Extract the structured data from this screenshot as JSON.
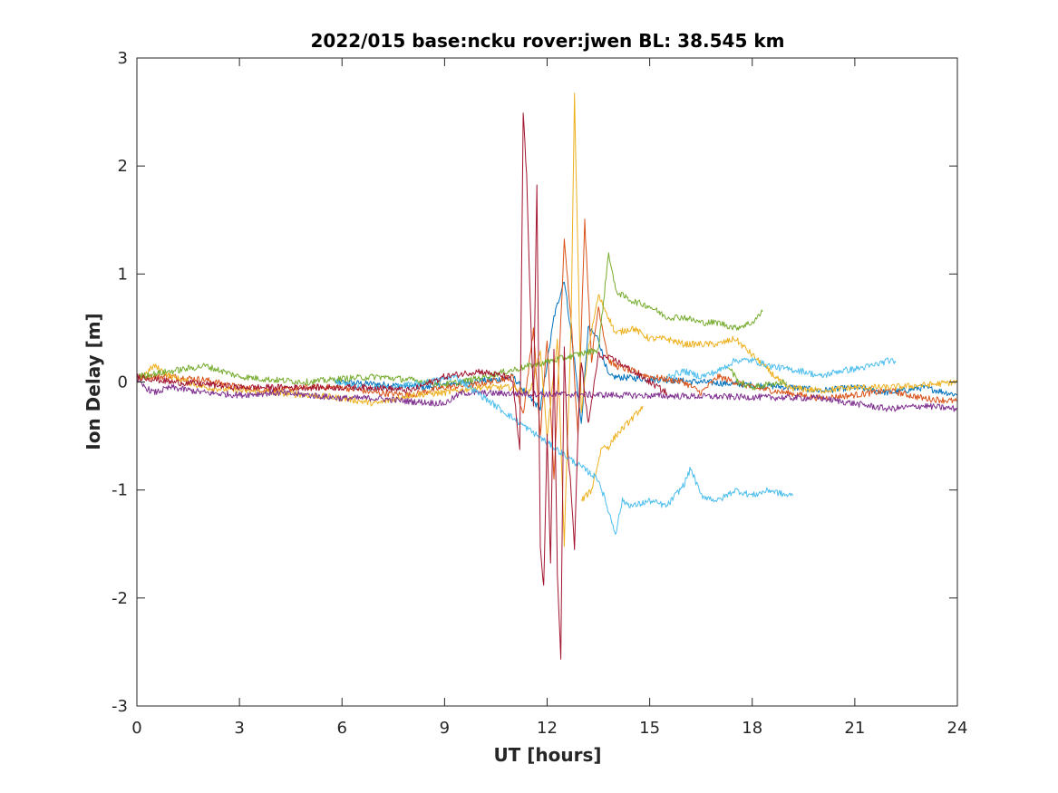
{
  "chart_data": {
    "type": "line",
    "title": "2022/015 base:ncku rover:jwen BL: 38.545 km",
    "xlabel": "UT [hours]",
    "ylabel": "Ion Delay [m]",
    "xlim": [
      0,
      24
    ],
    "ylim": [
      -3,
      3
    ],
    "xticks": [
      0,
      3,
      6,
      9,
      12,
      15,
      18,
      21,
      24
    ],
    "xtick_labels": [
      "0",
      "3",
      "6",
      "9",
      "12",
      "15",
      "18",
      "21",
      "24"
    ],
    "yticks": [
      3,
      2,
      1,
      0,
      -1,
      -2,
      -3
    ],
    "ytick_labels": [
      "3",
      "2",
      "1",
      "0",
      "-1",
      "-2",
      "-3"
    ],
    "grid": false,
    "legend": "none",
    "series": [
      {
        "color": "#0072BD",
        "x": [
          5.8,
          7.0,
          8.5,
          9.5,
          10.5,
          11.0,
          11.5,
          11.8,
          12.2,
          12.5,
          12.8,
          13.0,
          13.2,
          13.5,
          13.8,
          19.2,
          20.0,
          21.0,
          22.0,
          23.0,
          24.0
        ],
        "y": [
          0.0,
          -0.02,
          -0.05,
          0.0,
          0.02,
          0.05,
          -0.15,
          -0.25,
          0.6,
          0.95,
          0.2,
          -0.4,
          0.5,
          0.4,
          0.05,
          -0.05,
          -0.08,
          -0.05,
          -0.1,
          -0.05,
          -0.12
        ]
      },
      {
        "color": "#D95319",
        "x": [
          0.0,
          1.0,
          2.0,
          3.0,
          4.0,
          5.0,
          6.0,
          7.0,
          8.0,
          9.0,
          10.0,
          11.0,
          11.3,
          11.6,
          11.8,
          12.0,
          12.2,
          12.5,
          12.7,
          12.9,
          13.1,
          13.3,
          13.5,
          13.8,
          14.0,
          15.0,
          16.0,
          16.5,
          17.0,
          18.0,
          19.0,
          20.0,
          21.0,
          22.0,
          23.0,
          24.0
        ],
        "y": [
          0.05,
          0.05,
          0.02,
          -0.05,
          -0.08,
          -0.05,
          -0.05,
          -0.1,
          -0.12,
          -0.05,
          -0.02,
          0.05,
          -0.3,
          0.5,
          -0.5,
          0.4,
          -0.9,
          1.3,
          0.6,
          -0.5,
          1.5,
          0.2,
          0.7,
          0.2,
          0.15,
          0.05,
          0.0,
          -0.1,
          0.05,
          -0.05,
          -0.1,
          -0.15,
          -0.12,
          -0.08,
          -0.15,
          -0.18
        ]
      },
      {
        "color": "#EDB120",
        "x": [
          0.0,
          0.5,
          1.0,
          2.0,
          3.0,
          4.0,
          5.0,
          6.0,
          7.0,
          8.0,
          9.0,
          10.0,
          11.0,
          11.5,
          11.8,
          12.0,
          12.3,
          12.5,
          12.7,
          12.8,
          13.0,
          13.2,
          13.5,
          13.8,
          14.0,
          14.5,
          15.0,
          15.5,
          16.0,
          16.5,
          17.0,
          17.5,
          19.0,
          20.0,
          21.0,
          22.0,
          23.0,
          24.0
        ],
        "y": [
          0.0,
          0.15,
          0.05,
          -0.05,
          -0.08,
          -0.1,
          -0.12,
          -0.15,
          -0.2,
          -0.12,
          -0.1,
          -0.05,
          -0.05,
          -0.1,
          0.3,
          -0.5,
          0.4,
          -1.5,
          0.5,
          2.65,
          -0.3,
          0.3,
          0.8,
          0.6,
          0.45,
          0.5,
          0.4,
          0.4,
          0.35,
          0.35,
          0.35,
          0.4,
          -0.05,
          -0.08,
          -0.05,
          -0.05,
          -0.03,
          0.0
        ]
      },
      {
        "color": "#EDB120",
        "x": [
          13.0,
          13.3,
          13.6,
          13.8,
          14.0,
          14.3,
          14.6,
          14.8
        ],
        "y": [
          -1.1,
          -1.0,
          -0.6,
          -0.6,
          -0.5,
          -0.4,
          -0.3,
          -0.22
        ]
      },
      {
        "color": "#7E2F8E",
        "x": [
          0.0,
          0.5,
          1.0,
          2.0,
          3.0,
          4.0,
          5.0,
          6.0,
          7.0,
          8.0,
          9.0,
          9.5,
          20.0,
          21.0,
          22.0,
          23.0,
          24.0
        ],
        "y": [
          0.0,
          -0.1,
          -0.05,
          -0.1,
          -0.12,
          -0.1,
          -0.12,
          -0.15,
          -0.15,
          -0.18,
          -0.2,
          -0.1,
          -0.15,
          -0.2,
          -0.25,
          -0.22,
          -0.25
        ]
      },
      {
        "color": "#77AC30",
        "x": [
          0.0,
          1.0,
          2.0,
          3.0,
          4.0,
          5.0,
          6.0,
          7.0,
          8.0,
          9.0,
          9.5,
          13.5,
          13.8,
          14.0,
          14.2,
          14.5,
          15.0,
          15.5,
          16.0,
          16.5,
          17.0,
          17.5,
          18.0,
          18.3
        ],
        "y": [
          0.05,
          0.1,
          0.15,
          0.05,
          0.02,
          0.0,
          0.03,
          0.05,
          0.02,
          -0.02,
          0.0,
          0.3,
          1.2,
          0.85,
          0.8,
          0.75,
          0.7,
          0.6,
          0.6,
          0.55,
          0.55,
          0.5,
          0.55,
          0.65
        ]
      },
      {
        "color": "#77AC30",
        "x": [
          17.3,
          17.6,
          18.0,
          18.5,
          19.0
        ],
        "y": [
          0.15,
          0.0,
          -0.05,
          -0.02,
          0.0
        ]
      },
      {
        "color": "#4DBEEE",
        "x": [
          5.8,
          6.5,
          7.5,
          8.5,
          9.3,
          13.5,
          13.8,
          14.0,
          14.2,
          14.5,
          15.0,
          15.5,
          16.0,
          16.2,
          16.5,
          17.0,
          17.5,
          18.0,
          18.5,
          19.0,
          19.2
        ],
        "y": [
          0.0,
          -0.05,
          -0.05,
          0.0,
          0.05,
          -0.9,
          -1.2,
          -1.4,
          -1.1,
          -1.15,
          -1.1,
          -1.15,
          -0.95,
          -0.8,
          -1.05,
          -1.1,
          -1.0,
          -1.05,
          -1.0,
          -1.05,
          -1.05
        ]
      },
      {
        "color": "#4DBEEE",
        "x": [
          15.5,
          16.0,
          16.5,
          17.0,
          17.5,
          18.0,
          18.5,
          19.0,
          19.5,
          20.0,
          20.5,
          21.0,
          21.5,
          22.0,
          22.2
        ],
        "y": [
          0.05,
          0.1,
          0.05,
          0.1,
          0.2,
          0.2,
          0.15,
          0.12,
          0.1,
          0.05,
          0.1,
          0.12,
          0.15,
          0.2,
          0.18
        ]
      },
      {
        "color": "#A2142F",
        "x": [
          0.0,
          1.0,
          2.0,
          3.0,
          4.0,
          5.0,
          6.0,
          7.0,
          8.0,
          9.0,
          10.0,
          10.8,
          11.0,
          11.2,
          11.3,
          11.4,
          11.5,
          11.6,
          11.7,
          11.8,
          11.9,
          12.0,
          12.1,
          12.2,
          12.3,
          12.4,
          12.5,
          12.6,
          12.7,
          12.8,
          12.9,
          13.0,
          13.2,
          13.5,
          14.0,
          14.5,
          15.0,
          15.5
        ],
        "y": [
          0.05,
          0.0,
          -0.02,
          -0.05,
          -0.05,
          -0.05,
          -0.05,
          -0.05,
          -0.08,
          0.05,
          0.1,
          0.05,
          0.0,
          -0.65,
          2.5,
          1.9,
          0.8,
          -0.2,
          1.8,
          -1.5,
          -1.9,
          -0.5,
          -1.7,
          0.3,
          -1.8,
          -2.55,
          0.3,
          -0.6,
          -1.0,
          -1.55,
          -0.5,
          0.2,
          -0.4,
          0.25,
          0.2,
          0.1,
          0.0,
          -0.1
        ]
      }
    ]
  }
}
